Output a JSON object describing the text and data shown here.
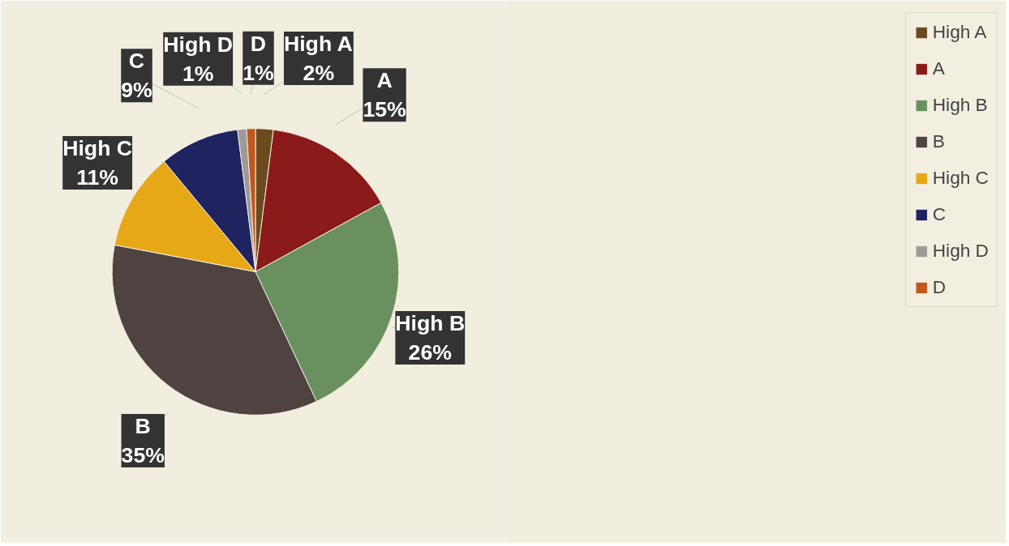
{
  "chart_data": {
    "type": "pie",
    "categories": [
      "High A",
      "A",
      "High B",
      "B",
      "High C",
      "C",
      "High D",
      "D"
    ],
    "values": [
      2,
      15,
      26,
      35,
      11,
      9,
      1,
      1
    ],
    "value_labels": [
      "2%",
      "15%",
      "26%",
      "35%",
      "11%",
      "9%",
      "1%",
      "1%"
    ],
    "colors": [
      "#6b4a1e",
      "#8b1a1a",
      "#6a9060",
      "#4e4341",
      "#e6a817",
      "#1f2360",
      "#9e9a98",
      "#c0581e"
    ],
    "legend": "right"
  }
}
